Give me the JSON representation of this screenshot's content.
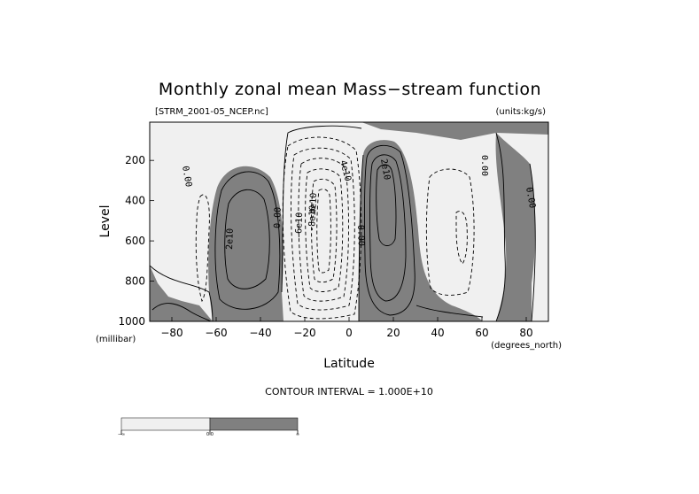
{
  "chart_data": {
    "type": "contour",
    "title": "Monthly zonal mean Mass−stream function",
    "file_label": "[STRM_2001-05_NCEP.nc]",
    "units_label": "(units:kg/s)",
    "xlabel": "Latitude",
    "x_units": "(degrees_north)",
    "ylabel": "Level",
    "y_units": "(millibar)",
    "xlim": [
      -90,
      90
    ],
    "ylim": [
      1000,
      10
    ],
    "x_ticks": [
      -80,
      -60,
      -40,
      -20,
      0,
      20,
      40,
      60,
      80
    ],
    "x_tick_labels": [
      "−80",
      "−60",
      "−40",
      "−20",
      "0",
      "20",
      "40",
      "60",
      "80"
    ],
    "y_ticks": [
      200,
      400,
      600,
      800,
      1000
    ],
    "y_tick_labels": [
      "200",
      "400",
      "600",
      "800",
      "1000"
    ],
    "contour_interval_text": "CONTOUR INTERVAL = 1.000E+10",
    "contour_labels": [
      "0.00",
      "0.00",
      "0.00",
      "0.00",
      "2e10",
      "2e10",
      "4e10",
      "-4e10",
      "-6e10",
      "-8e10",
      "0.00"
    ],
    "shading": {
      "negative_color": "#f0f0f0",
      "positive_color": "#808080"
    },
    "colorbar": {
      "labels": [
        "−∞",
        "0.0",
        "∞"
      ],
      "colors": [
        "#f0f0f0",
        "#808080"
      ]
    }
  }
}
